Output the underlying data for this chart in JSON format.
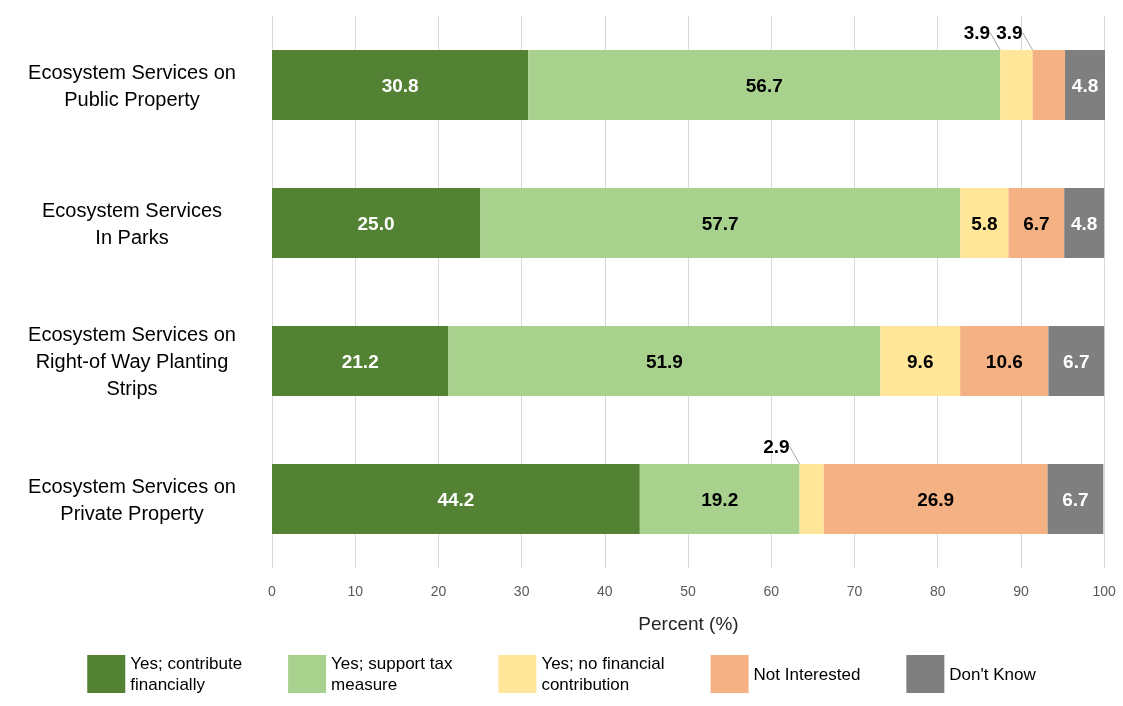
{
  "chart_data": {
    "type": "bar",
    "orientation": "horizontal",
    "stacked": true,
    "categories": [
      "Ecosystem Services on\nPublic Property",
      "Ecosystem Services\nIn Parks",
      "Ecosystem Services on\nRight-of Way Planting\nStrips",
      "Ecosystem Services on\nPrivate Property"
    ],
    "series": [
      {
        "name": "Yes; contribute\nfinancially",
        "color": "#548235",
        "values": [
          30.8,
          25.0,
          21.2,
          44.2
        ],
        "value_labels": [
          "30.8",
          "25.0",
          "21.2",
          "44.2"
        ]
      },
      {
        "name": "Yes; support tax\nmeasure",
        "color": "#a9d18e",
        "values": [
          56.7,
          57.7,
          51.9,
          19.2
        ],
        "value_labels": [
          "56.7",
          "57.7",
          "51.9",
          "19.2"
        ]
      },
      {
        "name": "Yes; no financial\ncontribution",
        "color": "#ffe699",
        "values": [
          3.9,
          5.8,
          9.6,
          2.9
        ],
        "value_labels": [
          "3.9",
          "5.8",
          "9.6",
          "2.9"
        ]
      },
      {
        "name": "Not Interested",
        "color": "#f4b183",
        "values": [
          3.9,
          6.7,
          10.6,
          26.9
        ],
        "value_labels": [
          "3.9",
          "6.7",
          "10.6",
          "26.9"
        ]
      },
      {
        "name": "Don't Know",
        "color": "#7f7f7f",
        "values": [
          4.8,
          4.8,
          6.7,
          6.7
        ],
        "value_labels": [
          "4.8",
          "4.8",
          "6.7",
          "6.7"
        ]
      }
    ],
    "xlabel": "Percent (%)",
    "xlim": [
      0,
      100.1
    ],
    "xticks": [
      0,
      10,
      20,
      30,
      40,
      50,
      60,
      70,
      80,
      90,
      100
    ],
    "grid": "x",
    "legend": "bottom"
  }
}
